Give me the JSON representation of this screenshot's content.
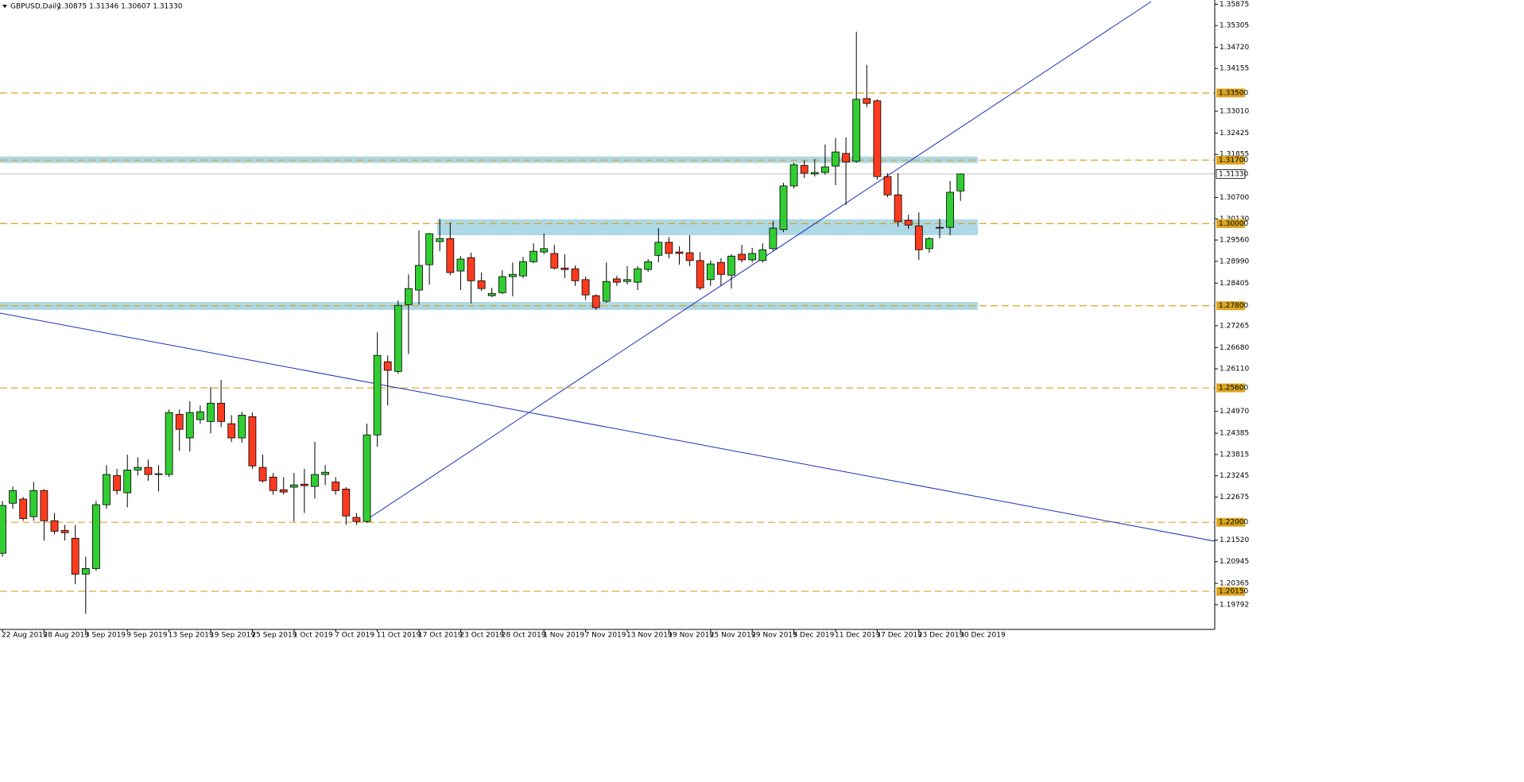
{
  "chart_data": {
    "type": "candlestick",
    "title": "GBPUSD,Daily",
    "subtitle": "1.30875 1.31346 1.30607 1.31330",
    "categories": [
      "22 Aug 2019",
      null,
      null,
      null,
      "28 Aug 2019",
      null,
      null,
      null,
      "3 Sep 2019",
      null,
      null,
      null,
      "9 Sep 2019",
      null,
      null,
      null,
      "13 Sep 2019",
      null,
      null,
      null,
      "19 Sep 2019",
      null,
      null,
      null,
      "25 Sep 2019",
      null,
      null,
      null,
      "1 Oct 2019",
      null,
      null,
      null,
      "7 Oct 2019",
      null,
      null,
      null,
      "11 Oct 2019",
      null,
      null,
      null,
      "17 Oct 2019",
      null,
      null,
      null,
      "23 Oct 2019",
      null,
      null,
      null,
      "28 Oct 2019",
      null,
      null,
      null,
      "1 Nov 2019",
      null,
      null,
      null,
      "7 Nov 2019",
      null,
      null,
      null,
      "13 Nov 2019",
      null,
      null,
      null,
      "19 Nov 2019",
      null,
      null,
      null,
      "25 Nov 2019",
      null,
      null,
      null,
      "29 Nov 2019",
      null,
      null,
      null,
      "5 Dec 2019",
      null,
      null,
      null,
      "11 Dec 2019",
      null,
      null,
      null,
      "17 Dec 2019",
      null,
      null,
      null,
      "23 Dec 2019",
      null,
      null,
      null,
      "30 Dec 2019"
    ],
    "open": [
      1.2117,
      1.2251,
      1.2262,
      1.2215,
      1.2285,
      1.2204,
      1.2178,
      1.2157,
      1.2061,
      1.2076,
      1.2247,
      1.2325,
      1.2279,
      1.234,
      1.2347,
      1.2328,
      1.2328,
      1.2489,
      1.2426,
      1.2475,
      1.247,
      1.2519,
      1.2464,
      1.2426,
      1.2483,
      1.2347,
      1.2321,
      1.2287,
      1.2294,
      1.2302,
      1.2296,
      1.2328,
      1.2308,
      1.2289,
      1.2213,
      1.2202,
      1.2434,
      1.263,
      1.2604,
      1.2783,
      1.2822,
      1.289,
      1.2952,
      1.296,
      1.2873,
      1.2909,
      1.2847,
      1.2807,
      1.2815,
      1.2858,
      1.286,
      1.2898,
      1.2924,
      1.292,
      1.2881,
      1.2879,
      1.285,
      1.2807,
      1.2792,
      1.2852,
      1.2845,
      1.2843,
      1.2877,
      1.2915,
      1.295,
      1.2924,
      1.2922,
      1.2901,
      1.285,
      1.2896,
      1.2862,
      1.2918,
      1.2903,
      1.2901,
      1.2933,
      1.2984,
      1.3101,
      1.3156,
      1.3133,
      1.3137,
      1.3154,
      1.3188,
      1.3167,
      1.3335,
      1.3329,
      1.3126,
      1.3077,
      1.3009,
      1.2994,
      1.2933,
      1.299,
      1.299,
      1.30875
    ],
    "high": [
      1.2257,
      1.2296,
      1.2268,
      1.2308,
      1.2289,
      1.2225,
      1.2193,
      1.2193,
      1.2108,
      1.2257,
      1.2353,
      1.2343,
      1.2381,
      1.2374,
      1.2368,
      1.2353,
      1.2502,
      1.2502,
      1.2524,
      1.2513,
      1.2562,
      1.2581,
      1.2487,
      1.2496,
      1.2494,
      1.2381,
      1.2332,
      1.2321,
      1.2332,
      1.2343,
      1.2415,
      1.2353,
      1.2321,
      1.2294,
      1.2225,
      1.2464,
      1.2709,
      1.2647,
      1.2794,
      1.2864,
      1.2982,
      1.2975,
      1.3013,
      1.3003,
      1.2913,
      1.2922,
      1.2869,
      1.2828,
      1.2875,
      1.2896,
      1.2911,
      1.2947,
      1.2973,
      1.2943,
      1.2918,
      1.2888,
      1.2858,
      1.2811,
      1.2896,
      1.286,
      1.2886,
      1.2886,
      1.2905,
      1.2988,
      1.2964,
      1.2939,
      1.2969,
      1.2924,
      1.2901,
      1.2907,
      1.2918,
      1.2943,
      1.2935,
      1.2947,
      1.3007,
      1.3109,
      1.3163,
      1.3169,
      1.3173,
      1.3212,
      1.3229,
      1.3231,
      1.3514,
      1.3425,
      1.3333,
      1.3135,
      1.3135,
      1.3024,
      1.303,
      1.2964,
      1.3013,
      1.3114,
      1.31346
    ],
    "low": [
      1.2108,
      1.2236,
      1.2204,
      1.2204,
      1.2151,
      1.2168,
      1.2151,
      1.2034,
      1.1955,
      1.207,
      1.2236,
      1.2274,
      1.224,
      1.2325,
      1.2311,
      1.2283,
      1.2321,
      1.2391,
      1.2389,
      1.2464,
      1.2438,
      1.2455,
      1.2415,
      1.2413,
      1.2343,
      1.2306,
      1.2274,
      1.2274,
      1.2202,
      1.2225,
      1.2264,
      1.23,
      1.2274,
      1.2193,
      1.2193,
      1.2198,
      1.2402,
      1.2513,
      1.2598,
      1.2651,
      1.2783,
      1.2837,
      1.2926,
      1.2862,
      1.2822,
      1.2786,
      1.282,
      1.2803,
      1.2811,
      1.2805,
      1.2854,
      1.2894,
      1.2918,
      1.2877,
      1.2854,
      1.2833,
      1.2796,
      1.2769,
      1.2788,
      1.2833,
      1.2837,
      1.2822,
      1.2871,
      1.2896,
      1.2907,
      1.289,
      1.2886,
      1.2822,
      1.2833,
      1.2833,
      1.2826,
      1.2896,
      1.2896,
      1.2896,
      1.2928,
      1.2977,
      1.3094,
      1.3122,
      1.3126,
      1.3131,
      1.3103,
      1.305,
      1.3163,
      1.3312,
      1.3118,
      1.3071,
      1.2992,
      1.2986,
      1.2903,
      1.2922,
      1.296,
      1.2969,
      1.30607
    ],
    "close": [
      1.2245,
      1.2285,
      1.221,
      1.2285,
      1.2204,
      1.2176,
      1.2172,
      1.2061,
      1.2076,
      1.2247,
      1.2328,
      1.2285,
      1.234,
      1.2347,
      1.2328,
      1.233,
      1.2494,
      1.2449,
      1.2494,
      1.2496,
      1.2519,
      1.247,
      1.2426,
      1.2487,
      1.2351,
      1.2311,
      1.2285,
      1.2281,
      1.23,
      1.2298,
      1.2328,
      1.2334,
      1.2285,
      1.2217,
      1.2202,
      1.2434,
      1.2647,
      1.2607,
      1.2781,
      1.2826,
      1.2888,
      1.2973,
      1.296,
      1.2869,
      1.2905,
      1.2847,
      1.2826,
      1.2813,
      1.2858,
      1.2864,
      1.2898,
      1.2926,
      1.2933,
      1.2881,
      1.2877,
      1.2847,
      1.2809,
      1.2775,
      1.2845,
      1.2843,
      1.285,
      1.2879,
      1.2898,
      1.295,
      1.292,
      1.292,
      1.2901,
      1.2828,
      1.2892,
      1.2864,
      1.2913,
      1.2903,
      1.292,
      1.293,
      1.2988,
      1.3101,
      1.3158,
      1.3135,
      1.3137,
      1.3152,
      1.3192,
      1.3165,
      1.3333,
      1.3322,
      1.3126,
      1.3077,
      1.3005,
      1.2996,
      1.293,
      1.296,
      1.2988,
      1.3084,
      1.3133
    ],
    "up_color": "#32cd32",
    "down_color": "#ff3b1f",
    "level_color": "#daa520",
    "ylim": [
      1.1913,
      1.3599
    ],
    "yticks": [
      1.35875,
      1.35305,
      {
        "value": 1.3472,
        "label": "1.34720"
      },
      1.34155,
      {
        "value": 1.3301,
        "label": "1.33010"
      },
      1.32425,
      1.31855,
      {
        "value": 1.307,
        "label": "1.30700"
      },
      {
        "value": 1.3013,
        "label": "1.30130"
      },
      {
        "value": 1.2956,
        "label": "1.29560"
      },
      {
        "value": 1.2899,
        "label": "1.28990"
      },
      1.28405,
      1.27265,
      {
        "value": 1.2668,
        "label": "1.26680"
      },
      {
        "value": 1.2611,
        "label": "1.26110"
      },
      {
        "value": 1.2497,
        "label": "1.24970"
      },
      1.24385,
      1.23815,
      1.23245,
      1.22675,
      {
        "value": 1.2152,
        "label": "1.21520"
      },
      1.20945,
      1.20365,
      1.19792
    ],
    "levels": [
      {
        "value": 1.335,
        "label": "1.33500"
      },
      {
        "value": 1.317,
        "label": "1.31700"
      },
      {
        "value": 1.3,
        "label": "1.30000"
      },
      {
        "value": 1.278,
        "label": "1.27800"
      },
      {
        "value": 1.256,
        "label": "1.25600"
      },
      {
        "value": 1.22,
        "label": "1.22000"
      },
      {
        "value": 1.2015,
        "label": "1.20150"
      }
    ],
    "current_price": {
      "value": 1.3133,
      "label": "1.31330"
    }
  }
}
